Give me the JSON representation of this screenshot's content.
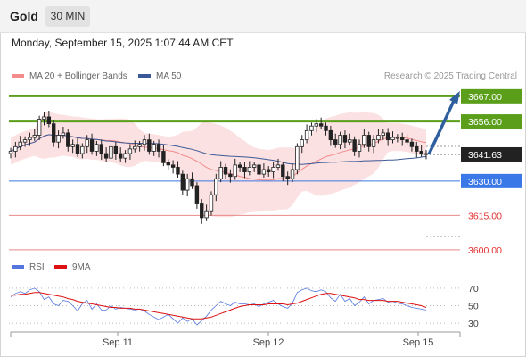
{
  "header": {
    "instrument": "Gold",
    "timeframe": "30 MIN",
    "datetime": "Monday, September 15, 2025 1:07:44 AM CET"
  },
  "legend": {
    "items": [
      {
        "label": "MA 20 + Bollinger Bands",
        "color": "#f28b8b"
      },
      {
        "label": "MA 50",
        "color": "#3b5998"
      }
    ],
    "credit": "Research © 2025 Trading Central"
  },
  "chart_data": [
    {
      "type": "candlestick",
      "ylim": [
        3598,
        3672
      ],
      "levels": [
        {
          "value": 3667.0,
          "label": "3667.00",
          "style": "resistance",
          "color": "#5a9e1a"
        },
        {
          "value": 3656.0,
          "label": "3656.00",
          "style": "resistance",
          "color": "#5a9e1a"
        },
        {
          "value": 3641.63,
          "label": "3641.63",
          "style": "current",
          "color": "#222222"
        },
        {
          "value": 3630.0,
          "label": "3630.00",
          "style": "pivot",
          "color": "#3a78e7"
        },
        {
          "value": 3615.0,
          "label": "3615.00",
          "style": "support",
          "color": "#e88a8a"
        },
        {
          "value": 3600.0,
          "label": "3600.00",
          "style": "support",
          "color": "#e88a8a"
        }
      ],
      "close_path": [
        3643,
        3645,
        3647,
        3648,
        3649,
        3650,
        3657,
        3658,
        3655,
        3647,
        3650,
        3651,
        3645,
        3646,
        3642,
        3645,
        3648,
        3643,
        3646,
        3642,
        3640,
        3645,
        3642,
        3640,
        3642,
        3644,
        3645,
        3646,
        3648,
        3643,
        3646,
        3643,
        3638,
        3637,
        3636,
        3633,
        3626,
        3631,
        3628,
        3620,
        3614,
        3617,
        3624,
        3631,
        3636,
        3633,
        3632,
        3637,
        3636,
        3634,
        3636,
        3637,
        3633,
        3635,
        3634,
        3636,
        3637,
        3632,
        3631,
        3635,
        3645,
        3648,
        3652,
        3654,
        3655,
        3654,
        3652,
        3648,
        3646,
        3650,
        3647,
        3648,
        3643,
        3646,
        3650,
        3645,
        3648,
        3650,
        3651,
        3648,
        3649,
        3649,
        3648,
        3647,
        3645,
        3643,
        3642,
        3641.63
      ],
      "annotation": "projected move from 3641.63 toward 3667.00",
      "x_ticks": [
        "Sep 11",
        "Sep 12",
        "Sep 15"
      ]
    },
    {
      "type": "line",
      "legend": [
        {
          "name": "RSI",
          "color": "#5577dd"
        },
        {
          "name": "9MA",
          "color": "#dd1111"
        }
      ],
      "ylim": [
        22,
        78
      ],
      "y_ticks": [
        70,
        50,
        30
      ],
      "series": [
        {
          "name": "RSI",
          "values": [
            60,
            64,
            66,
            64,
            68,
            70,
            66,
            57,
            60,
            52,
            50,
            56,
            55,
            50,
            44,
            52,
            56,
            46,
            52,
            45,
            45,
            50,
            46,
            48,
            47,
            46,
            45,
            46,
            44,
            40,
            37,
            34,
            37,
            40,
            35,
            30,
            36,
            32,
            35,
            28,
            33,
            38,
            45,
            50,
            55,
            52,
            50,
            54,
            52,
            52,
            51,
            52,
            49,
            52,
            54,
            56,
            52,
            49,
            47,
            53,
            65,
            68,
            70,
            67,
            66,
            68,
            66,
            59,
            55,
            63,
            55,
            58,
            50,
            54,
            60,
            52,
            56,
            57,
            58,
            54,
            55,
            53,
            52,
            50,
            48,
            47,
            46,
            45
          ]
        },
        {
          "name": "9MA",
          "values": [
            62,
            62,
            63,
            63,
            64,
            65,
            65,
            64,
            63,
            62,
            61,
            60,
            58,
            57,
            55,
            54,
            53,
            52,
            51,
            50,
            49,
            48,
            48,
            47,
            47,
            47,
            46,
            46,
            45,
            44,
            43,
            42,
            41,
            40,
            39,
            38,
            37,
            36,
            35,
            35,
            35,
            36,
            37,
            39,
            41,
            43,
            45,
            47,
            49,
            50,
            51,
            51,
            51,
            51,
            52,
            52,
            52,
            52,
            51,
            52,
            53,
            55,
            57,
            59,
            61,
            63,
            64,
            64,
            63,
            62,
            61,
            60,
            59,
            57,
            57,
            56,
            56,
            56,
            56,
            55,
            55,
            55,
            54,
            53,
            52,
            51,
            50,
            48
          ]
        }
      ]
    }
  ]
}
